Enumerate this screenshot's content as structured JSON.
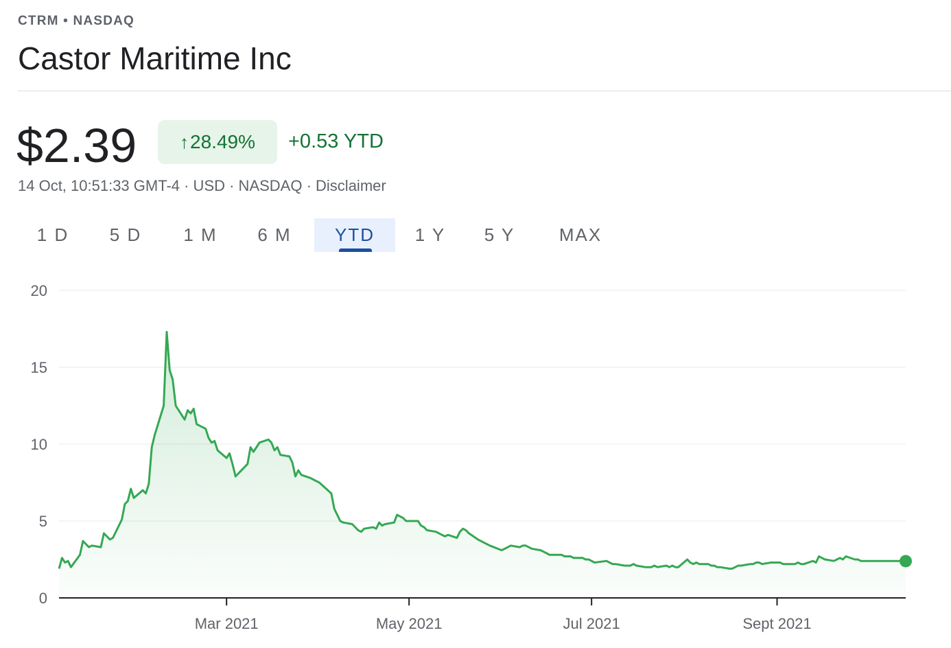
{
  "header": {
    "ticker": "CTRM • NASDAQ",
    "company": "Castor Maritime Inc"
  },
  "quote": {
    "price": "$2.39",
    "percent_change": "28.49%",
    "arrow_icon": "arrow-up-icon",
    "abs_change": "+0.53 YTD",
    "timestamp_currency_exchange": "14 Oct, 10:51:33 GMT-4 · USD · NASDAQ · ",
    "disclaimer": "Disclaimer",
    "positive_color": "#137333",
    "badge_bg": "#e6f4ea"
  },
  "tabs": [
    {
      "label": "1 D",
      "active": false
    },
    {
      "label": "5 D",
      "active": false
    },
    {
      "label": "1 M",
      "active": false
    },
    {
      "label": "6 M",
      "active": false
    },
    {
      "label": "YTD",
      "active": true
    },
    {
      "label": "1 Y",
      "active": false
    },
    {
      "label": "5 Y",
      "active": false
    },
    {
      "label": "MAX",
      "active": false
    }
  ],
  "chart_data": {
    "type": "area",
    "title": "",
    "xlabel": "",
    "ylabel": "",
    "ylim": [
      0,
      20
    ],
    "y_ticks": [
      0,
      5,
      10,
      15,
      20
    ],
    "x_range": [
      "2021-01-04",
      "2021-10-14"
    ],
    "x_tick_labels": [
      {
        "date": "2021-03-01",
        "label": "Mar 2021"
      },
      {
        "date": "2021-05-01",
        "label": "May 2021"
      },
      {
        "date": "2021-07-01",
        "label": "Jul 2021"
      },
      {
        "date": "2021-09-01",
        "label": "Sept 2021"
      }
    ],
    "grid": true,
    "line_color": "#34a853",
    "series": [
      {
        "values": [
          [
            "2021-01-04",
            1.9
          ],
          [
            "2021-01-05",
            2.6
          ],
          [
            "2021-01-06",
            2.3
          ],
          [
            "2021-01-07",
            2.4
          ],
          [
            "2021-01-08",
            2.0
          ],
          [
            "2021-01-11",
            2.8
          ],
          [
            "2021-01-12",
            3.7
          ],
          [
            "2021-01-13",
            3.5
          ],
          [
            "2021-01-14",
            3.3
          ],
          [
            "2021-01-15",
            3.4
          ],
          [
            "2021-01-18",
            3.3
          ],
          [
            "2021-01-19",
            4.2
          ],
          [
            "2021-01-20",
            4.0
          ],
          [
            "2021-01-21",
            3.8
          ],
          [
            "2021-01-22",
            3.9
          ],
          [
            "2021-01-25",
            5.1
          ],
          [
            "2021-01-26",
            6.1
          ],
          [
            "2021-01-27",
            6.3
          ],
          [
            "2021-01-28",
            7.1
          ],
          [
            "2021-01-29",
            6.5
          ],
          [
            "2021-02-01",
            7.0
          ],
          [
            "2021-02-02",
            6.8
          ],
          [
            "2021-02-03",
            7.4
          ],
          [
            "2021-02-04",
            9.8
          ],
          [
            "2021-02-05",
            10.6
          ],
          [
            "2021-02-08",
            12.5
          ],
          [
            "2021-02-09",
            17.3
          ],
          [
            "2021-02-10",
            14.8
          ],
          [
            "2021-02-11",
            14.2
          ],
          [
            "2021-02-12",
            12.5
          ],
          [
            "2021-02-15",
            11.6
          ],
          [
            "2021-02-16",
            12.2
          ],
          [
            "2021-02-17",
            12.0
          ],
          [
            "2021-02-18",
            12.3
          ],
          [
            "2021-02-19",
            11.3
          ],
          [
            "2021-02-22",
            11.0
          ],
          [
            "2021-02-23",
            10.4
          ],
          [
            "2021-02-24",
            10.1
          ],
          [
            "2021-02-25",
            10.2
          ],
          [
            "2021-02-26",
            9.6
          ],
          [
            "2021-03-01",
            9.1
          ],
          [
            "2021-03-02",
            9.4
          ],
          [
            "2021-03-03",
            8.7
          ],
          [
            "2021-03-04",
            7.9
          ],
          [
            "2021-03-05",
            8.1
          ],
          [
            "2021-03-08",
            8.7
          ],
          [
            "2021-03-09",
            9.8
          ],
          [
            "2021-03-10",
            9.5
          ],
          [
            "2021-03-11",
            9.8
          ],
          [
            "2021-03-12",
            10.1
          ],
          [
            "2021-03-15",
            10.3
          ],
          [
            "2021-03-16",
            10.1
          ],
          [
            "2021-03-17",
            9.6
          ],
          [
            "2021-03-18",
            9.8
          ],
          [
            "2021-03-19",
            9.3
          ],
          [
            "2021-03-22",
            9.2
          ],
          [
            "2021-03-23",
            8.8
          ],
          [
            "2021-03-24",
            7.9
          ],
          [
            "2021-03-25",
            8.3
          ],
          [
            "2021-03-26",
            8.0
          ],
          [
            "2021-03-29",
            7.8
          ],
          [
            "2021-03-30",
            7.7
          ],
          [
            "2021-03-31",
            7.6
          ],
          [
            "2021-04-01",
            7.5
          ],
          [
            "2021-04-05",
            6.8
          ],
          [
            "2021-04-06",
            5.8
          ],
          [
            "2021-04-07",
            5.4
          ],
          [
            "2021-04-08",
            5.0
          ],
          [
            "2021-04-09",
            4.9
          ],
          [
            "2021-04-12",
            4.8
          ],
          [
            "2021-04-13",
            4.6
          ],
          [
            "2021-04-14",
            4.4
          ],
          [
            "2021-04-15",
            4.3
          ],
          [
            "2021-04-16",
            4.5
          ],
          [
            "2021-04-19",
            4.6
          ],
          [
            "2021-04-20",
            4.5
          ],
          [
            "2021-04-21",
            4.9
          ],
          [
            "2021-04-22",
            4.7
          ],
          [
            "2021-04-23",
            4.8
          ],
          [
            "2021-04-26",
            4.9
          ],
          [
            "2021-04-27",
            5.4
          ],
          [
            "2021-04-28",
            5.3
          ],
          [
            "2021-04-29",
            5.2
          ],
          [
            "2021-04-30",
            5.0
          ],
          [
            "2021-05-03",
            5.0
          ],
          [
            "2021-05-04",
            5.0
          ],
          [
            "2021-05-05",
            4.7
          ],
          [
            "2021-05-06",
            4.6
          ],
          [
            "2021-05-07",
            4.4
          ],
          [
            "2021-05-10",
            4.3
          ],
          [
            "2021-05-11",
            4.2
          ],
          [
            "2021-05-12",
            4.1
          ],
          [
            "2021-05-13",
            4.0
          ],
          [
            "2021-05-14",
            4.1
          ],
          [
            "2021-05-17",
            3.9
          ],
          [
            "2021-05-18",
            4.3
          ],
          [
            "2021-05-19",
            4.5
          ],
          [
            "2021-05-20",
            4.4
          ],
          [
            "2021-05-21",
            4.2
          ],
          [
            "2021-05-24",
            3.8
          ],
          [
            "2021-05-25",
            3.7
          ],
          [
            "2021-05-26",
            3.6
          ],
          [
            "2021-05-27",
            3.5
          ],
          [
            "2021-05-28",
            3.4
          ],
          [
            "2021-06-01",
            3.1
          ],
          [
            "2021-06-02",
            3.2
          ],
          [
            "2021-06-03",
            3.3
          ],
          [
            "2021-06-04",
            3.4
          ],
          [
            "2021-06-07",
            3.3
          ],
          [
            "2021-06-08",
            3.4
          ],
          [
            "2021-06-09",
            3.4
          ],
          [
            "2021-06-10",
            3.3
          ],
          [
            "2021-06-11",
            3.2
          ],
          [
            "2021-06-14",
            3.1
          ],
          [
            "2021-06-15",
            3.0
          ],
          [
            "2021-06-16",
            2.9
          ],
          [
            "2021-06-17",
            2.8
          ],
          [
            "2021-06-18",
            2.8
          ],
          [
            "2021-06-21",
            2.8
          ],
          [
            "2021-06-22",
            2.7
          ],
          [
            "2021-06-23",
            2.7
          ],
          [
            "2021-06-24",
            2.7
          ],
          [
            "2021-06-25",
            2.6
          ],
          [
            "2021-06-28",
            2.6
          ],
          [
            "2021-06-29",
            2.5
          ],
          [
            "2021-06-30",
            2.5
          ],
          [
            "2021-07-01",
            2.4
          ],
          [
            "2021-07-02",
            2.3
          ],
          [
            "2021-07-06",
            2.4
          ],
          [
            "2021-07-07",
            2.3
          ],
          [
            "2021-07-08",
            2.2
          ],
          [
            "2021-07-09",
            2.2
          ],
          [
            "2021-07-12",
            2.1
          ],
          [
            "2021-07-13",
            2.1
          ],
          [
            "2021-07-14",
            2.1
          ],
          [
            "2021-07-15",
            2.2
          ],
          [
            "2021-07-16",
            2.1
          ],
          [
            "2021-07-19",
            2.0
          ],
          [
            "2021-07-20",
            2.0
          ],
          [
            "2021-07-21",
            2.0
          ],
          [
            "2021-07-22",
            2.1
          ],
          [
            "2021-07-23",
            2.0
          ],
          [
            "2021-07-26",
            2.1
          ],
          [
            "2021-07-27",
            2.0
          ],
          [
            "2021-07-28",
            2.1
          ],
          [
            "2021-07-29",
            2.0
          ],
          [
            "2021-07-30",
            2.0
          ],
          [
            "2021-08-02",
            2.5
          ],
          [
            "2021-08-03",
            2.3
          ],
          [
            "2021-08-04",
            2.2
          ],
          [
            "2021-08-05",
            2.3
          ],
          [
            "2021-08-06",
            2.2
          ],
          [
            "2021-08-09",
            2.2
          ],
          [
            "2021-08-10",
            2.1
          ],
          [
            "2021-08-11",
            2.1
          ],
          [
            "2021-08-12",
            2.0
          ],
          [
            "2021-08-13",
            2.0
          ],
          [
            "2021-08-16",
            1.9
          ],
          [
            "2021-08-17",
            1.9
          ],
          [
            "2021-08-18",
            2.0
          ],
          [
            "2021-08-19",
            2.1
          ],
          [
            "2021-08-20",
            2.1
          ],
          [
            "2021-08-23",
            2.2
          ],
          [
            "2021-08-24",
            2.2
          ],
          [
            "2021-08-25",
            2.3
          ],
          [
            "2021-08-26",
            2.3
          ],
          [
            "2021-08-27",
            2.2
          ],
          [
            "2021-08-30",
            2.3
          ],
          [
            "2021-08-31",
            2.3
          ],
          [
            "2021-09-01",
            2.3
          ],
          [
            "2021-09-02",
            2.3
          ],
          [
            "2021-09-03",
            2.2
          ],
          [
            "2021-09-07",
            2.2
          ],
          [
            "2021-09-08",
            2.3
          ],
          [
            "2021-09-09",
            2.2
          ],
          [
            "2021-09-10",
            2.2
          ],
          [
            "2021-09-13",
            2.4
          ],
          [
            "2021-09-14",
            2.3
          ],
          [
            "2021-09-15",
            2.7
          ],
          [
            "2021-09-16",
            2.6
          ],
          [
            "2021-09-17",
            2.5
          ],
          [
            "2021-09-20",
            2.4
          ],
          [
            "2021-09-21",
            2.5
          ],
          [
            "2021-09-22",
            2.6
          ],
          [
            "2021-09-23",
            2.5
          ],
          [
            "2021-09-24",
            2.7
          ],
          [
            "2021-09-27",
            2.5
          ],
          [
            "2021-09-28",
            2.5
          ],
          [
            "2021-09-29",
            2.4
          ],
          [
            "2021-09-30",
            2.4
          ],
          [
            "2021-10-01",
            2.4
          ],
          [
            "2021-10-04",
            2.4
          ],
          [
            "2021-10-05",
            2.4
          ],
          [
            "2021-10-06",
            2.4
          ],
          [
            "2021-10-07",
            2.4
          ],
          [
            "2021-10-08",
            2.4
          ],
          [
            "2021-10-11",
            2.4
          ],
          [
            "2021-10-12",
            2.4
          ],
          [
            "2021-10-13",
            2.4
          ],
          [
            "2021-10-14",
            2.39
          ]
        ]
      }
    ]
  }
}
